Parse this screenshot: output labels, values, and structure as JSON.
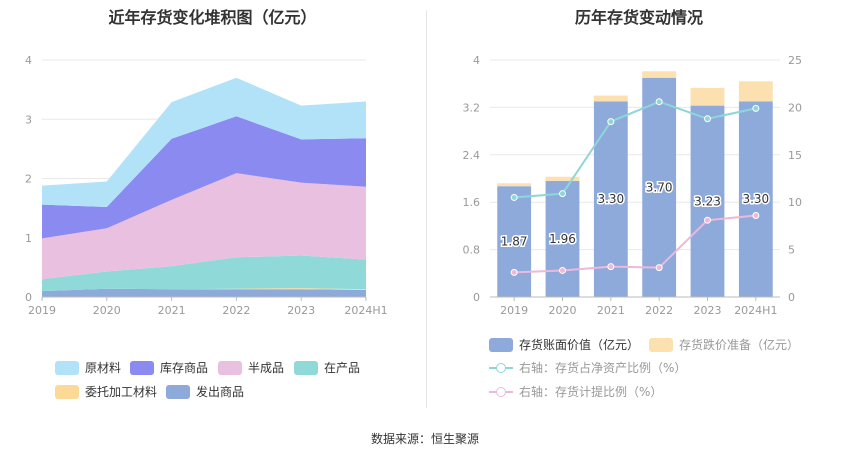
{
  "source_text": "数据来源：恒生聚源",
  "chart_data": [
    {
      "type": "area",
      "title": "近年存货变化堆积图（亿元）",
      "categories": [
        "2019",
        "2020",
        "2021",
        "2022",
        "2023",
        "2024H1"
      ],
      "ylim": [
        0,
        4
      ],
      "y_ticks": [
        "0",
        "1",
        "2",
        "3",
        "4"
      ],
      "stacked": true,
      "grid": true,
      "legend_position": "bottom",
      "series": [
        {
          "name": "发出商品",
          "color": "#8eaadb",
          "values": [
            0.1,
            0.14,
            0.13,
            0.13,
            0.13,
            0.12
          ]
        },
        {
          "name": "委托加工材料",
          "color": "#fdd998",
          "values": [
            0.0,
            0.0,
            0.0,
            0.01,
            0.02,
            0.01
          ]
        },
        {
          "name": "在产品",
          "color": "#8fd9d8",
          "values": [
            0.2,
            0.29,
            0.39,
            0.53,
            0.55,
            0.5
          ]
        },
        {
          "name": "半成品",
          "color": "#eac0e0",
          "values": [
            0.69,
            0.73,
            1.12,
            1.42,
            1.23,
            1.23
          ]
        },
        {
          "name": "库存商品",
          "color": "#8a8af0",
          "values": [
            0.57,
            0.36,
            1.03,
            0.96,
            0.73,
            0.82
          ]
        },
        {
          "name": "原材料",
          "color": "#b2e2f8",
          "values": [
            0.32,
            0.43,
            0.62,
            0.65,
            0.57,
            0.62
          ]
        }
      ],
      "legend_order": [
        "原材料",
        "库存商品",
        "半成品",
        "在产品",
        "委托加工材料",
        "发出商品"
      ]
    },
    {
      "type": "bar",
      "title": "历年存货变动情况",
      "categories": [
        "2019",
        "2020",
        "2021",
        "2022",
        "2023",
        "2024H1"
      ],
      "ylim": [
        0,
        4
      ],
      "y_ticks": [
        "0",
        "0.8",
        "1.6",
        "2.4",
        "3.2",
        "4"
      ],
      "y2lim": [
        0,
        25
      ],
      "y2_ticks": [
        "0",
        "5",
        "10",
        "15",
        "20",
        "25"
      ],
      "grid": true,
      "legend_position": "bottom",
      "series": [
        {
          "name": "存货账面价值（亿元）",
          "kind": "bar",
          "axis": "left",
          "color": "#8eaadb",
          "values": [
            1.87,
            1.96,
            3.3,
            3.7,
            3.23,
            3.3
          ],
          "labels": [
            "1.87",
            "1.96",
            "3.30",
            "3.70",
            "3.23",
            "3.30"
          ]
        },
        {
          "name": "存货跌价准备（亿元）",
          "kind": "bar",
          "axis": "left",
          "color": "#fde0b0",
          "stacked_on": 0,
          "values": [
            0.05,
            0.07,
            0.1,
            0.11,
            0.3,
            0.34
          ]
        },
        {
          "name": "右轴：存货占净资产比例（%）",
          "kind": "line",
          "axis": "right",
          "color": "#8ed6d8",
          "values": [
            10.5,
            10.9,
            18.5,
            20.6,
            18.8,
            19.9
          ]
        },
        {
          "name": "右轴：存货计提比例（%）",
          "kind": "line",
          "axis": "right",
          "color": "#ecb8dc",
          "values": [
            2.6,
            2.8,
            3.2,
            3.1,
            8.1,
            8.6
          ]
        }
      ]
    }
  ]
}
